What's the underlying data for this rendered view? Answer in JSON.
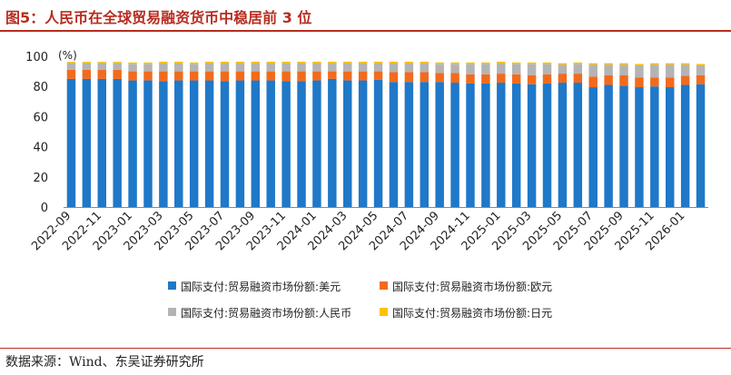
{
  "title": "图5：人民币在全球贸易融资货币中稳居前 3 位",
  "source": "数据来源：Wind、东吴证券研究所",
  "chart_data": {
    "type": "bar",
    "stacked": true,
    "ylabel": "(%)",
    "ylim": [
      0,
      100
    ],
    "yticks": [
      0,
      20,
      40,
      60,
      80,
      100
    ],
    "grid": false,
    "legend_position": "bottom",
    "categories": [
      "2022-09",
      "2022-10",
      "2022-11",
      "2022-12",
      "2023-01",
      "2023-02",
      "2023-03",
      "2023-04",
      "2023-05",
      "2023-06",
      "2023-07",
      "2023-08",
      "2023-09",
      "2023-10",
      "2023-11",
      "2023-12",
      "2024-01",
      "2024-02",
      "2024-03",
      "2024-04",
      "2024-05",
      "2024-06",
      "2024-07",
      "2024-08",
      "2024-09",
      "2024-10",
      "2024-11",
      "2024-12",
      "2025-01",
      "2025-02",
      "2025-03",
      "2025-04",
      "2025-05",
      "2025-06",
      "2025-07",
      "2025-08",
      "2025-09",
      "2025-10",
      "2025-11",
      "2025-12",
      "2026-01",
      "2026-02"
    ],
    "tick_labels": [
      "2022-09",
      "2022-11",
      "2023-01",
      "2023-03",
      "2023-05",
      "2023-07",
      "2023-09",
      "2023-11",
      "2024-01",
      "2024-03",
      "2024-05",
      "2024-07",
      "2024-09",
      "2024-11",
      "2025-01",
      "2025-03",
      "2025-05",
      "2025-07",
      "2025-09",
      "2025-11",
      "2026-01"
    ],
    "series": [
      {
        "name": "国际支付:贸易融资市场份额:美元",
        "color": "#1f78c8",
        "values": [
          85,
          85,
          85,
          85,
          84,
          84,
          83.5,
          84,
          84,
          84,
          83.5,
          84,
          84,
          84,
          83.5,
          83.5,
          84,
          85,
          84,
          84,
          84.5,
          83,
          83,
          83,
          83,
          82.5,
          82,
          82,
          82.5,
          82,
          81.5,
          82,
          82.5,
          82.5,
          79.5,
          81,
          80.5,
          79.5,
          80,
          79.5,
          81,
          81.5
        ]
      },
      {
        "name": "国际支付:贸易融资市场份额:欧元",
        "color": "#f26b1d",
        "values": [
          6,
          6,
          6,
          6,
          6,
          6,
          6.5,
          6,
          6,
          6,
          6.5,
          6,
          6,
          6,
          6.5,
          6.5,
          6,
          5,
          6,
          6,
          5.5,
          6.5,
          6.5,
          6.5,
          6,
          6.5,
          6,
          6,
          6,
          6,
          6,
          6,
          6,
          6,
          7,
          6.5,
          7,
          6.5,
          6,
          6.5,
          6,
          6
        ]
      },
      {
        "name": "国际支付:贸易融资市场份额:人民币",
        "color": "#b4b4b4",
        "values": [
          4.5,
          4.5,
          4.5,
          4.5,
          5,
          5,
          5.5,
          5.5,
          5,
          5.5,
          5.5,
          5.5,
          5.5,
          5.5,
          5.5,
          5.5,
          5.5,
          5.5,
          5.5,
          5.5,
          5.5,
          6,
          6,
          6,
          6,
          6,
          7,
          7,
          7,
          7,
          7.5,
          7,
          6,
          6.5,
          8,
          7,
          7,
          8,
          8.5,
          8.5,
          7.5,
          6.5
        ]
      },
      {
        "name": "国际支付:贸易融资市场份额:日元",
        "color": "#ffc000",
        "values": [
          0.8,
          0.8,
          0.8,
          0.8,
          0.9,
          0.9,
          0.9,
          0.9,
          0.9,
          0.9,
          0.9,
          0.9,
          0.9,
          0.9,
          0.9,
          0.9,
          0.9,
          0.9,
          0.9,
          0.9,
          0.9,
          0.9,
          0.9,
          0.9,
          0.9,
          0.9,
          0.9,
          0.9,
          0.9,
          0.9,
          0.9,
          0.9,
          0.9,
          0.9,
          0.9,
          0.9,
          0.9,
          0.9,
          0.9,
          0.9,
          0.9,
          0.9
        ]
      }
    ]
  }
}
